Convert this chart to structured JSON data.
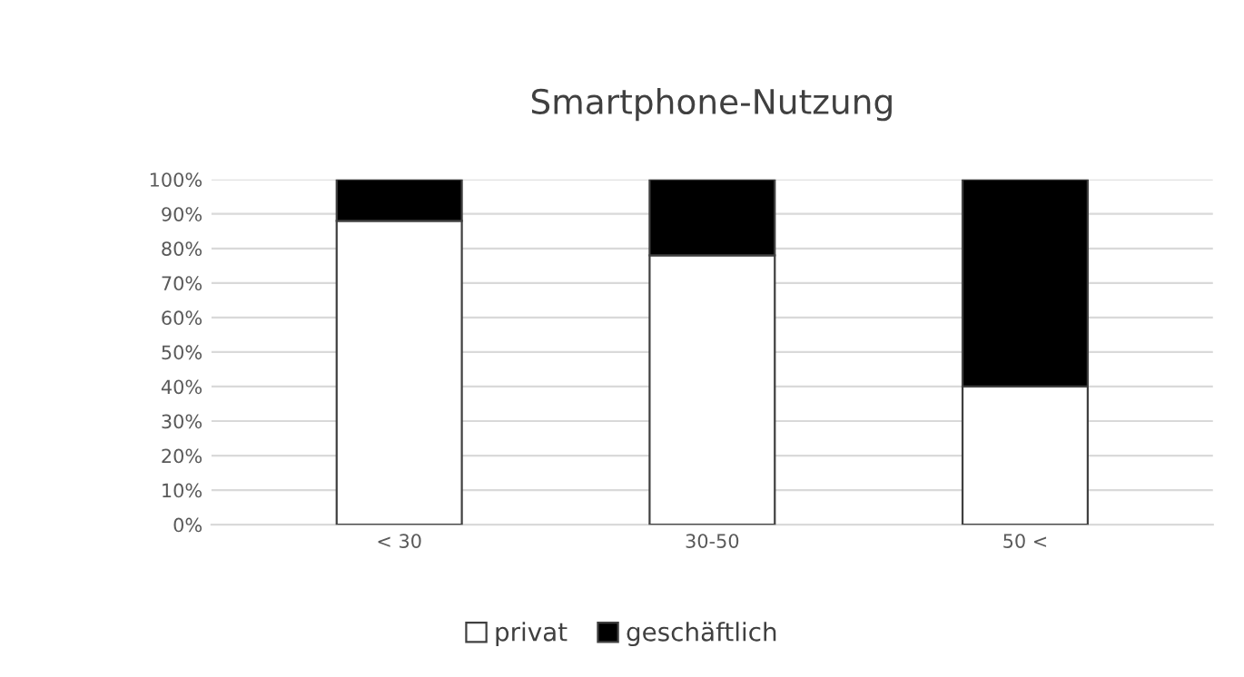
{
  "chart_data": {
    "type": "bar",
    "title": "Smartphone-Nutzung",
    "stacked": true,
    "categories": [
      "< 30",
      "30-50",
      "50 <"
    ],
    "series": [
      {
        "name": "privat",
        "color": "#ffffff",
        "values": [
          88,
          78,
          40
        ]
      },
      {
        "name": "geschäftlich",
        "color": "#000000",
        "values": [
          12,
          22,
          60
        ]
      }
    ],
    "ylim": [
      0,
      100
    ],
    "yticks": [
      {
        "value": 0,
        "label": "0%"
      },
      {
        "value": 10,
        "label": "10%"
      },
      {
        "value": 20,
        "label": "20%"
      },
      {
        "value": 30,
        "label": "30%"
      },
      {
        "value": 40,
        "label": "40%"
      },
      {
        "value": 50,
        "label": "50%"
      },
      {
        "value": 60,
        "label": "60%"
      },
      {
        "value": 70,
        "label": "70%"
      },
      {
        "value": 80,
        "label": "80%"
      },
      {
        "value": 90,
        "label": "90%"
      },
      {
        "value": 100,
        "label": "100%"
      }
    ],
    "grid": "y",
    "legend": "bottom"
  }
}
